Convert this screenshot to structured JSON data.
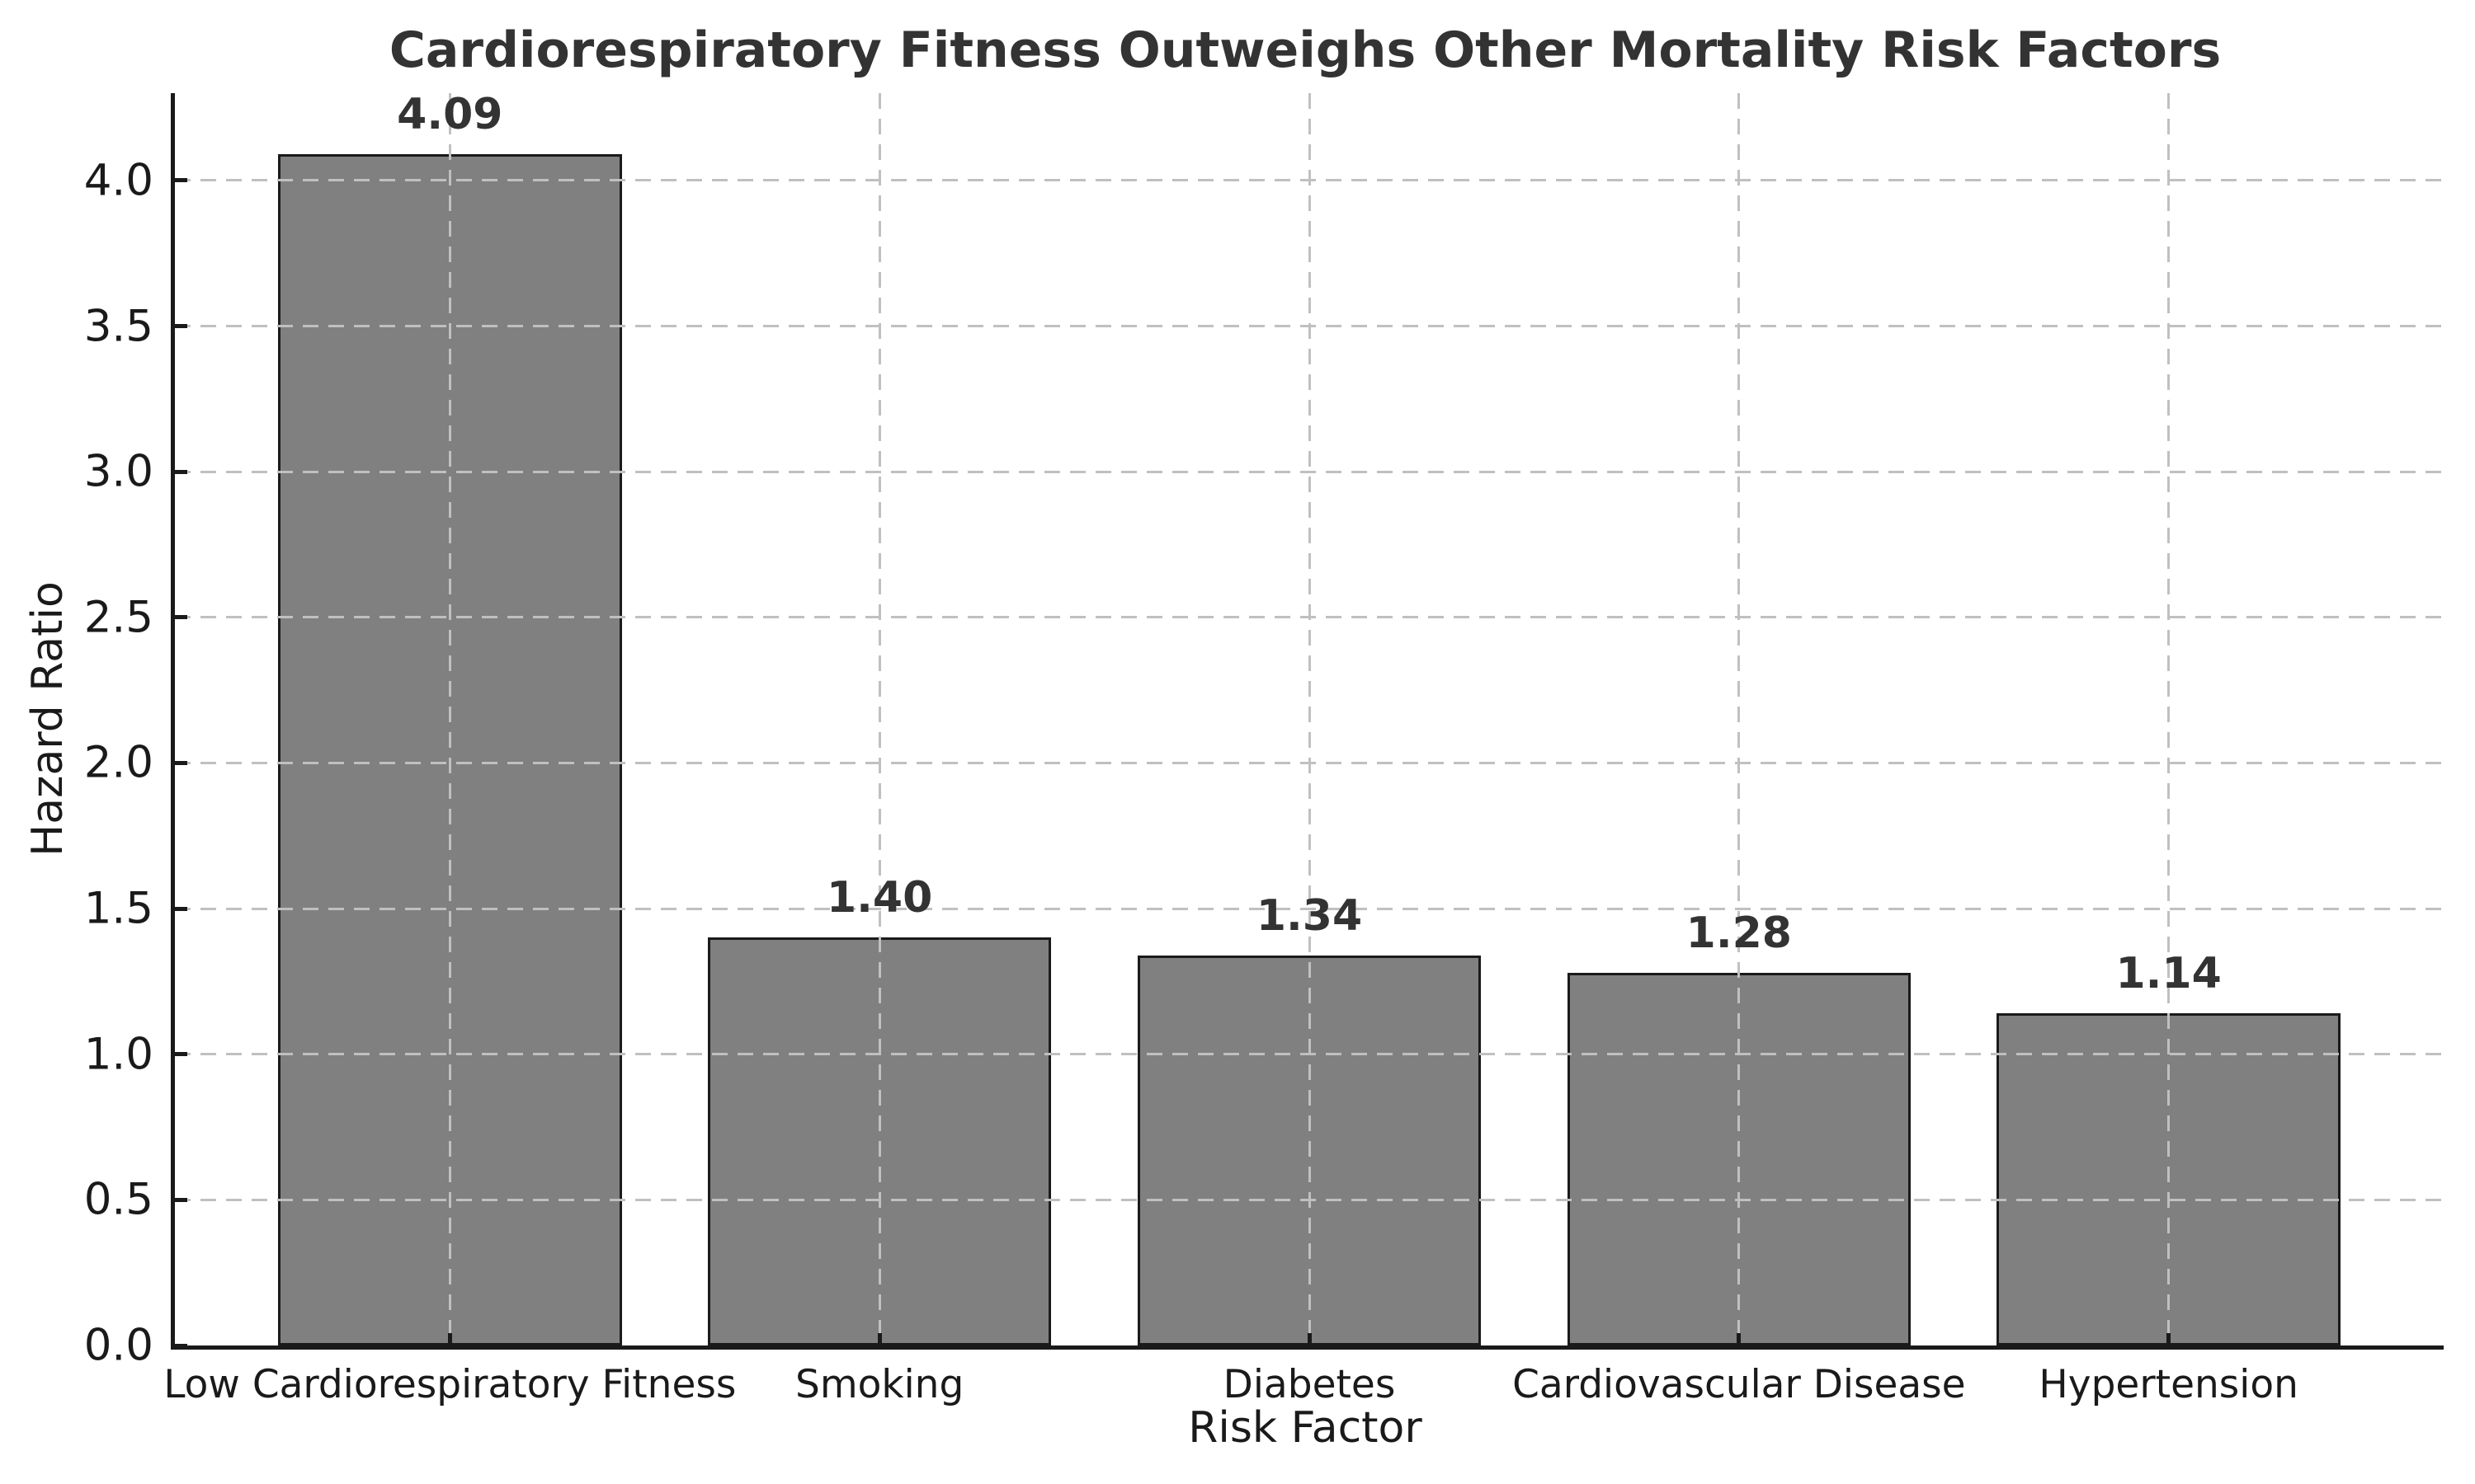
{
  "chart_data": {
    "type": "bar",
    "title": "Cardiorespiratory Fitness Outweighs Other Mortality Risk Factors",
    "xlabel": "Risk Factor",
    "ylabel": "Hazard Ratio",
    "categories": [
      "Low Cardiorespiratory Fitness",
      "Smoking",
      "Diabetes",
      "Cardiovascular Disease",
      "Hypertension"
    ],
    "values": [
      4.09,
      1.4,
      1.34,
      1.28,
      1.14
    ],
    "bar_value_labels": [
      "4.09",
      "1.40",
      "1.34",
      "1.28",
      "1.14"
    ],
    "ylim": [
      0,
      4.3
    ],
    "yticks": [
      0.0,
      0.5,
      1.0,
      1.5,
      2.0,
      2.5,
      3.0,
      3.5,
      4.0
    ],
    "ytick_labels": [
      "0.0",
      "0.5",
      "1.0",
      "1.5",
      "2.0",
      "2.5",
      "3.0",
      "3.5",
      "4.0"
    ],
    "xlim": [
      -0.64,
      4.64
    ],
    "bar_width_units": 0.8,
    "grid": {
      "horizontal": true,
      "vertical": true,
      "line_style": "dashed"
    },
    "legend": null,
    "colors": {
      "bar_fill": "#808080",
      "bar_edge": "#1a1a1a",
      "spine": "#1a1a1a",
      "grid": "#c0c0c0",
      "title_text": "#333333",
      "value_label_text": "#333333",
      "tick_text": "#1a1a1a"
    }
  }
}
